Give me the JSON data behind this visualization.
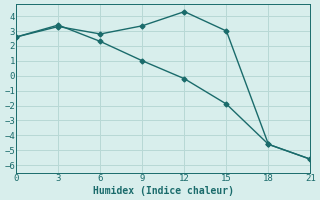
{
  "xlabel": "Humidex (Indice chaleur)",
  "ylabel": "",
  "background_color": "#d8eeec",
  "line_color": "#1a6b6b",
  "grid_color": "#b8d8d5",
  "line1_x": [
    0,
    3,
    6,
    9,
    12,
    15,
    18,
    21
  ],
  "line1_y": [
    2.6,
    3.3,
    2.8,
    3.35,
    4.3,
    3.0,
    -4.6,
    -5.6
  ],
  "line2_x": [
    0,
    3,
    6,
    9,
    12,
    15,
    18,
    21
  ],
  "line2_y": [
    2.6,
    3.4,
    2.3,
    1.0,
    -0.2,
    -1.9,
    -4.6,
    -5.6
  ],
  "xlim": [
    0,
    21
  ],
  "ylim": [
    -6.5,
    4.8
  ],
  "xticks": [
    0,
    3,
    6,
    9,
    12,
    15,
    18,
    21
  ],
  "yticks": [
    -6,
    -5,
    -4,
    -3,
    -2,
    -1,
    0,
    1,
    2,
    3,
    4
  ],
  "marker": "D",
  "markersize": 2.5,
  "linewidth": 1.0
}
